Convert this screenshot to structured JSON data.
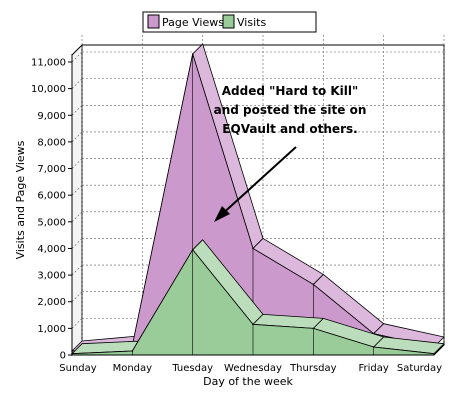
{
  "colors": {
    "page_views": "#cc99cc",
    "page_views_top": "#ddb8dd",
    "visits": "#99cc99",
    "visits_top": "#bbddbb",
    "wall": "#ffffff",
    "grid": "#606060"
  },
  "chart_data": {
    "type": "area",
    "categories": [
      "Sunday",
      "Monday",
      "Tuesday",
      "Wednesday",
      "Thursday",
      "Friday",
      "Saturday"
    ],
    "series": [
      {
        "name": "Page Views",
        "values": [
          150,
          350,
          11300,
          4000,
          2650,
          800,
          300
        ]
      },
      {
        "name": "Visits",
        "values": [
          50,
          150,
          3950,
          1150,
          1000,
          300,
          50
        ]
      }
    ],
    "xlabel": "Day of the week",
    "ylabel": "Visits and Page Views",
    "ylim": [
      0,
      11000
    ],
    "yticks": [
      "0",
      "1,000",
      "2,000",
      "3,000",
      "4,000",
      "5,000",
      "6,000",
      "7,000",
      "8,000",
      "9,000",
      "10,000",
      "11,000"
    ],
    "grid": true,
    "legend": "top-center",
    "annotation": [
      "Added \"Hard to Kill\"",
      "and posted the site on",
      "EQVault and others."
    ]
  }
}
